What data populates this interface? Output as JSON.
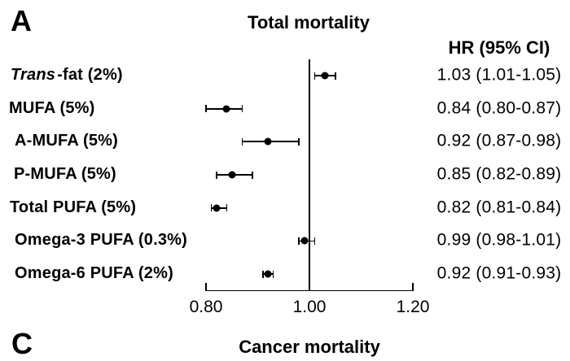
{
  "figure": {
    "background": "#ffffff",
    "panel_label": "A",
    "next_panel_label": "C",
    "next_panel_title": "Cancer mortality"
  },
  "chart_data": {
    "type": "scatter",
    "variant": "forest-plot",
    "title": "Total mortality",
    "column_header": "HR (95% CI)",
    "xlabel": "",
    "ylabel": "",
    "xlim": [
      0.8,
      1.2
    ],
    "reference_line": 1.0,
    "grid": false,
    "legend": false,
    "axis_ticks": [
      {
        "value": 0.8,
        "label": "0.80"
      },
      {
        "value": 1.0,
        "label": "1.00"
      },
      {
        "value": 1.2,
        "label": "1.20"
      }
    ],
    "rows": [
      {
        "label_italic": "Trans",
        "label": "-fat (2%)",
        "full_label": "Trans-fat (2%)",
        "hr": 1.03,
        "ci_low": 1.01,
        "ci_high": 1.05,
        "hr_text": "1.03 (1.01-1.05)"
      },
      {
        "label_italic": "",
        "label": "MUFA (5%)",
        "full_label": "MUFA (5%)",
        "hr": 0.84,
        "ci_low": 0.8,
        "ci_high": 0.87,
        "hr_text": "0.84 (0.80-0.87)"
      },
      {
        "label_italic": "",
        "label": "A-MUFA (5%)",
        "full_label": "A-MUFA (5%)",
        "hr": 0.92,
        "ci_low": 0.87,
        "ci_high": 0.98,
        "hr_text": "0.92 (0.87-0.98)"
      },
      {
        "label_italic": "",
        "label": "P-MUFA (5%)",
        "full_label": "P-MUFA (5%)",
        "hr": 0.85,
        "ci_low": 0.82,
        "ci_high": 0.89,
        "hr_text": "0.85 (0.82-0.89)"
      },
      {
        "label_italic": "",
        "label": "Total PUFA (5%)",
        "full_label": "Total PUFA (5%)",
        "hr": 0.82,
        "ci_low": 0.81,
        "ci_high": 0.84,
        "hr_text": "0.82 (0.81-0.84)"
      },
      {
        "label_italic": "",
        "label": "Omega-3 PUFA (0.3%)",
        "full_label": "Omega-3 PUFA (0.3%)",
        "hr": 0.99,
        "ci_low": 0.98,
        "ci_high": 1.01,
        "hr_text": "0.99 (0.98-1.01)"
      },
      {
        "label_italic": "",
        "label": "Omega-6 PUFA (2%)",
        "full_label": "Omega-6 PUFA (2%)",
        "hr": 0.92,
        "ci_low": 0.91,
        "ci_high": 0.93,
        "hr_text": "0.92 (0.91-0.93)"
      }
    ],
    "colors": {
      "marker": "#000000",
      "axis": "#000000",
      "text": "#000000",
      "background": "#ffffff"
    }
  }
}
